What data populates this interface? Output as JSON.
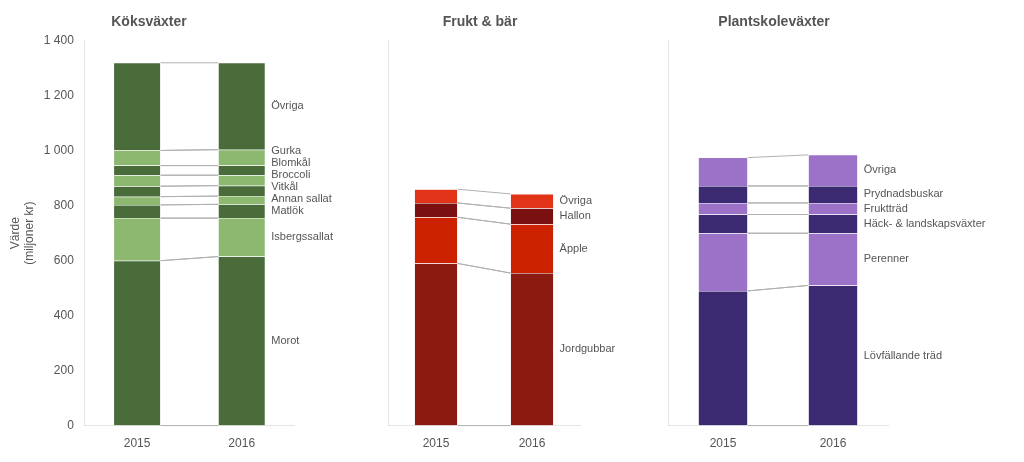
{
  "chart_data": [
    {
      "type": "bar",
      "stacked": true,
      "title": "Köksväxter",
      "ylabel": [
        "Värde",
        "(miljoner kr)"
      ],
      "categories": [
        "2015",
        "2016"
      ],
      "series": [
        {
          "name": "Morot",
          "color": "#4a6b3a",
          "values": [
            600,
            615
          ]
        },
        {
          "name": "Isbergssallat",
          "color": "#8cb870",
          "values": [
            155,
            140
          ]
        },
        {
          "name": "Matlök",
          "color": "#4a6b3a",
          "values": [
            48,
            50
          ]
        },
        {
          "name": "Annan sallat",
          "color": "#8cb870",
          "values": [
            30,
            30
          ]
        },
        {
          "name": "Vitkål",
          "color": "#4a6b3a",
          "values": [
            38,
            38
          ]
        },
        {
          "name": "Broccoli",
          "color": "#8cb870",
          "values": [
            40,
            38
          ]
        },
        {
          "name": "Blomkål",
          "color": "#4a6b3a",
          "values": [
            35,
            35
          ]
        },
        {
          "name": "Gurka",
          "color": "#8cb870",
          "values": [
            55,
            58
          ]
        },
        {
          "name": "Övriga",
          "color": "#4a6b3a",
          "values": [
            319,
            316
          ]
        }
      ],
      "ylim": [
        0,
        1400
      ],
      "yticks": [
        0,
        200,
        400,
        600,
        800,
        {
          "value": 1000,
          "label": "1 000"
        },
        {
          "value": 1200,
          "label": "1 200"
        },
        {
          "value": 1400,
          "label": "1 400"
        }
      ],
      "grid": false
    },
    {
      "type": "bar",
      "stacked": true,
      "title": "Frukt & bär",
      "categories": [
        "2015",
        "2016"
      ],
      "series": [
        {
          "name": "Jordgubbar",
          "color": "#8b1a10",
          "values": [
            590,
            555
          ]
        },
        {
          "name": "Äpple",
          "color": "#cc2200",
          "values": [
            168,
            178
          ]
        },
        {
          "name": "Hallon",
          "color": "#7a1010",
          "values": [
            52,
            58
          ]
        },
        {
          "name": "Övriga",
          "color": "#e03318",
          "values": [
            50,
            52
          ]
        }
      ],
      "ylim": [
        0,
        1400
      ],
      "tick_labels": "x",
      "grid": false
    },
    {
      "type": "bar",
      "stacked": true,
      "title": "Plantskoleväxter",
      "categories": [
        "2015",
        "2016"
      ],
      "series": [
        {
          "name": "Lövfällande träd",
          "color": "#3b2a72",
          "values": [
            490,
            510
          ]
        },
        {
          "name": "Perenner",
          "color": "#9b72c8",
          "values": [
            210,
            190
          ]
        },
        {
          "name": "Häck- & landskapsväxter",
          "color": "#3b2a72",
          "values": [
            68,
            68
          ]
        },
        {
          "name": "Fruktträd",
          "color": "#9b72c8",
          "values": [
            42,
            42
          ]
        },
        {
          "name": "Prydnadsbuskar",
          "color": "#3b2a72",
          "values": [
            62,
            62
          ]
        },
        {
          "name": "Övriga",
          "color": "#9b72c8",
          "values": [
            103,
            113
          ]
        }
      ],
      "ylim": [
        0,
        1400
      ],
      "tick_labels": "x",
      "grid": false
    }
  ]
}
